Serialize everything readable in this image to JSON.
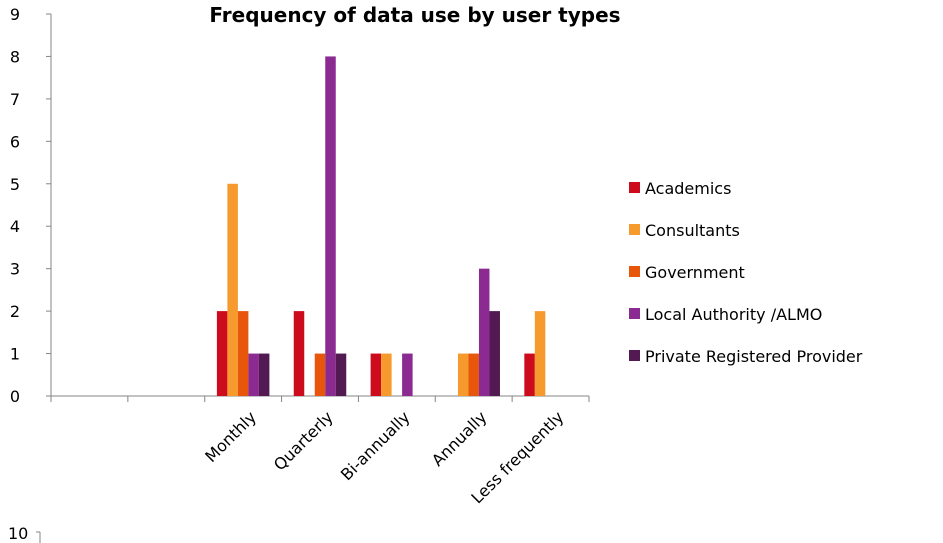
{
  "chart_data": {
    "type": "bar",
    "title": "Frequency of data use by user types",
    "categories": [
      "",
      "",
      "Monthly",
      "Quarterly",
      "Bi-annually",
      "Annually",
      "Less frequently"
    ],
    "ylim": [
      0,
      9
    ],
    "y_ticks": [
      "0",
      "1",
      "2",
      "3",
      "4",
      "5",
      "6",
      "7",
      "8",
      "9"
    ],
    "grid": false,
    "legend_position": "right",
    "series": [
      {
        "name": "Academics",
        "color": "#cc0c1c",
        "values": [
          0,
          0,
          2,
          2,
          1,
          0,
          1
        ]
      },
      {
        "name": "Consultants",
        "color": "#f79a2e",
        "values": [
          0,
          0,
          5,
          0,
          1,
          1,
          2
        ]
      },
      {
        "name": "Government",
        "color": "#e8560c",
        "values": [
          0,
          0,
          2,
          1,
          0,
          1,
          0
        ]
      },
      {
        "name": "Local Authority /ALMO",
        "color": "#8b2a90",
        "values": [
          0,
          0,
          1,
          8,
          1,
          3,
          0
        ]
      },
      {
        "name": "Private Registered Provider",
        "color": "#521952",
        "values": [
          0,
          0,
          1,
          1,
          0,
          2,
          0
        ]
      }
    ]
  },
  "extra": {
    "second_chart_top_label": "10"
  }
}
